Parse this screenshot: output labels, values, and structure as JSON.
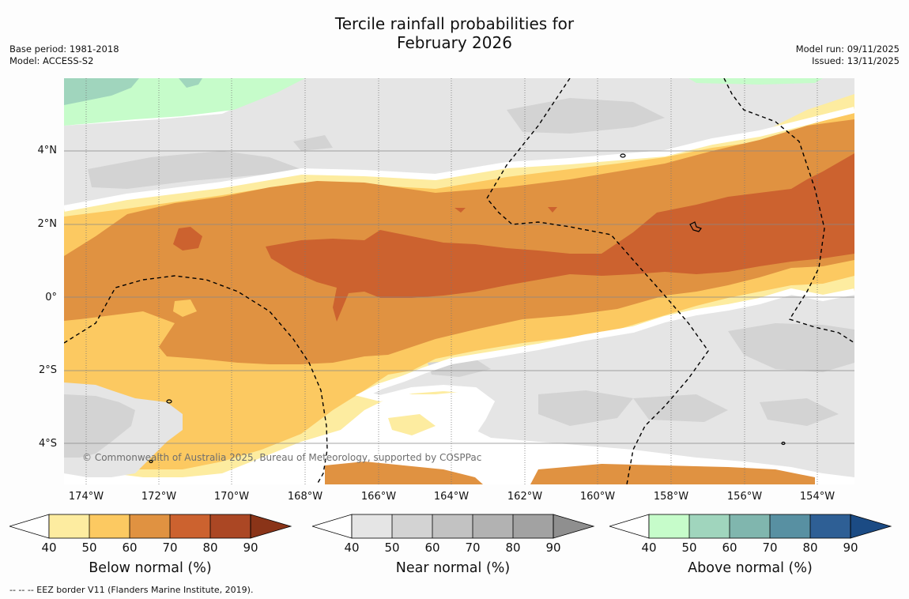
{
  "header": {
    "title_line1": "Tercile rainfall probabilities for",
    "title_line2": "February 2026",
    "base_period": "Base period: 1981-2018",
    "model": "Model: ACCESS-S2",
    "model_run": "Model run: 09/11/2025",
    "issued": "Issued: 13/11/2025"
  },
  "map": {
    "lat_labels": [
      "4°N",
      "2°N",
      "0°",
      "2°S",
      "4°S"
    ],
    "lon_labels": [
      "174°W",
      "172°W",
      "170°W",
      "168°W",
      "166°W",
      "164°W",
      "162°W",
      "160°W",
      "158°W",
      "156°W",
      "154°W"
    ],
    "copyright": "© Commonwealth of Australia 2025, Bureau of Meteorology, supported by COSPPac",
    "colors": {
      "below": [
        "#fdeca0",
        "#fcc961",
        "#e09241",
        "#cc622f",
        "#ab4724",
        "#8a3418"
      ],
      "near": [
        "#e5e5e5",
        "#d3d3d3",
        "#c2c2c2",
        "#b2b2b2",
        "#a2a2a2",
        "#8f8f8f"
      ],
      "above": [
        "#c6fcca",
        "#a0d5bd",
        "#80b6ae",
        "#5890a2",
        "#2e5f95",
        "#1b4b84"
      ]
    }
  },
  "legends": [
    {
      "title": "Below normal (%)",
      "ticks": [
        "40",
        "50",
        "60",
        "70",
        "80",
        "90"
      ]
    },
    {
      "title": "Near normal (%)",
      "ticks": [
        "40",
        "50",
        "60",
        "70",
        "80",
        "90"
      ]
    },
    {
      "title": "Above normal (%)",
      "ticks": [
        "40",
        "50",
        "60",
        "70",
        "80",
        "90"
      ]
    }
  ],
  "footnote": "--  --  -- EEZ border V11 (Flanders Marine Institute, 2019)."
}
